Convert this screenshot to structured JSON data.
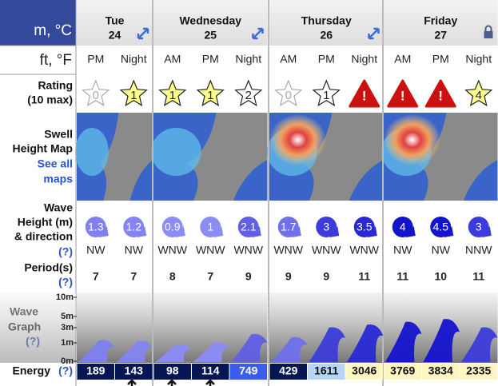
{
  "units": {
    "metric": "m, °C",
    "imperial": "ft, °F"
  },
  "days": [
    {
      "name": "Tue",
      "date": "24",
      "slots": [
        "PM",
        "Night"
      ]
    },
    {
      "name": "Wednesday",
      "date": "25",
      "slots": [
        "AM",
        "PM",
        "Night"
      ]
    },
    {
      "name": "Thursday",
      "date": "26",
      "slots": [
        "AM",
        "PM",
        "Night"
      ]
    },
    {
      "name": "Friday",
      "date": "27",
      "slots": [
        "AM",
        "PM",
        "Night"
      ]
    }
  ],
  "rating": {
    "label_lines": [
      "Rating",
      "(10 max)"
    ],
    "values": [
      0,
      1,
      1,
      1,
      2,
      0,
      1,
      "!",
      "!",
      "!",
      4
    ],
    "colors": [
      "#ffffff",
      "#ffff8c",
      "#ffff8c",
      "#ffff8c",
      "#ffffff",
      "#ffffff",
      "#ffffff",
      "#cc1111",
      "#cc1111",
      "#cc1111",
      "#ffff8c"
    ]
  },
  "swell_map": {
    "label_lines": [
      "Swell",
      "Height Map"
    ],
    "link_lines": [
      "See all",
      "maps"
    ]
  },
  "wave_height": {
    "label_lines": [
      "Wave",
      "Height (m)",
      "& direction"
    ],
    "help": "(?)",
    "values": [
      1.3,
      1.2,
      0.9,
      1,
      2.1,
      1.7,
      3,
      3.5,
      4,
      4.5,
      3
    ],
    "directions": [
      "NW",
      "NW",
      "WNW",
      "WNW",
      "WNW",
      "WNW",
      "WNW",
      "WNW",
      "NW",
      "NW",
      "NNW"
    ]
  },
  "period": {
    "label": "Period(s)",
    "help": "(?)",
    "values": [
      7,
      7,
      8,
      7,
      9,
      9,
      9,
      11,
      11,
      10,
      11
    ]
  },
  "wave_graph": {
    "label_lines": [
      "Wave",
      "Graph"
    ],
    "help": "(?)",
    "yticks": [
      {
        "value": 10,
        "label": "10m"
      },
      {
        "value": 5,
        "label": "5m"
      },
      {
        "value": 3,
        "label": "3m"
      },
      {
        "value": 1,
        "label": "1m"
      },
      {
        "value": 0,
        "label": "0m"
      }
    ]
  },
  "energy": {
    "label": "Energy",
    "help": "(?)",
    "values": [
      189,
      143,
      98,
      114,
      749,
      429,
      1611,
      3046,
      3769,
      3834,
      2335
    ]
  }
}
